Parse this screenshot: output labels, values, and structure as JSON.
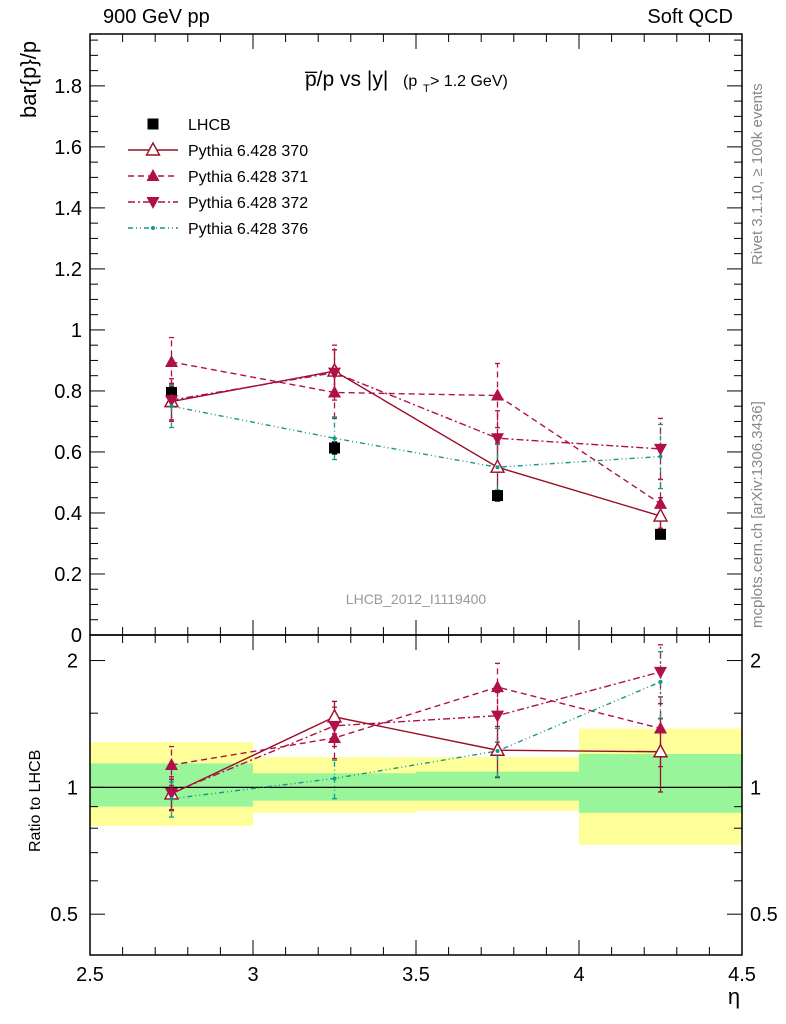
{
  "header": {
    "left": "900 GeV pp",
    "right": "Soft QCD"
  },
  "side_text": {
    "upper": "Rivet 3.1.10, ≥ 100k events",
    "lower": "mcplots.cern.ch [arXiv:1306.3436]"
  },
  "colors": {
    "lhcb": "#000000",
    "p370": "#9b0f26",
    "p371": "#b0104a",
    "p372": "#b0104a",
    "p376": "#119a8a",
    "band_inner": "#99f599",
    "band_outer": "#ffff99"
  },
  "chart_data": [
    {
      "type": "scatter",
      "title": "p̅/p vs |y|",
      "title_suffix": "(p",
      "title_sub": "T",
      "title_end": " > 1.2 GeV)",
      "ylabel": "bar{p}/p",
      "watermark": "LHCB_2012_I1119400",
      "xlim": [
        2.5,
        4.5
      ],
      "ylim": [
        0,
        1.97
      ],
      "yticks": [
        0,
        0.2,
        0.4,
        0.6,
        0.8,
        1,
        1.2,
        1.4,
        1.6,
        1.8
      ],
      "ytick_labels": [
        "0",
        "0.2",
        "0.4",
        "0.6",
        "0.8",
        "1",
        "1.2",
        "1.4",
        "1.6",
        "1.8"
      ],
      "legend_position": "top-left",
      "series": [
        {
          "key": "lhcb",
          "name": "LHCB",
          "marker": "square",
          "line": "none",
          "x": [
            2.75,
            3.25,
            3.75,
            4.25
          ],
          "y": [
            0.795,
            0.613,
            0.457,
            0.33
          ],
          "yerr": [
            0.025,
            0.02,
            0.018,
            0.015
          ]
        },
        {
          "key": "p370",
          "name": "Pythia 6.428 370",
          "marker": "triangle-open",
          "line": "solid",
          "x": [
            2.75,
            3.25,
            3.75,
            4.25
          ],
          "y": [
            0.765,
            0.865,
            0.55,
            0.39
          ],
          "yerr": [
            0.06,
            0.07,
            0.08,
            0.06
          ]
        },
        {
          "key": "p371",
          "name": "Pythia 6.428 371",
          "marker": "triangle-up",
          "line": "dashed",
          "x": [
            2.75,
            3.25,
            3.75,
            4.25
          ],
          "y": [
            0.895,
            0.795,
            0.785,
            0.43
          ],
          "yerr": [
            0.08,
            0.085,
            0.105,
            0.08
          ]
        },
        {
          "key": "p372",
          "name": "Pythia 6.428 372",
          "marker": "triangle-down",
          "line": "dashdot",
          "x": [
            2.75,
            3.25,
            3.75,
            4.25
          ],
          "y": [
            0.77,
            0.86,
            0.645,
            0.61
          ],
          "yerr": [
            0.07,
            0.09,
            0.09,
            0.1
          ]
        },
        {
          "key": "p376",
          "name": "Pythia 6.428 376",
          "marker": "dot",
          "line": "dashdotdot",
          "x": [
            2.75,
            3.25,
            3.75,
            4.25
          ],
          "y": [
            0.75,
            0.645,
            0.55,
            0.585
          ],
          "yerr": [
            0.07,
            0.07,
            0.075,
            0.105
          ]
        }
      ]
    },
    {
      "type": "scatter",
      "ylabel": "Ratio to LHCB",
      "xlabel": "η",
      "xlim": [
        2.5,
        4.5
      ],
      "ylim": [
        0.4,
        2.3
      ],
      "log_y": true,
      "xticks": [
        2.5,
        3,
        3.5,
        4,
        4.5
      ],
      "xtick_labels": [
        "2.5",
        "3",
        "3.5",
        "4",
        "4.5"
      ],
      "yticks": [
        0.5,
        1,
        2
      ],
      "ytick_labels": [
        "0.5",
        "1",
        "2"
      ],
      "bands": [
        {
          "x": [
            2.5,
            3.0
          ],
          "inner": [
            0.9,
            1.14
          ],
          "outer": [
            0.81,
            1.28
          ]
        },
        {
          "x": [
            3.0,
            3.5
          ],
          "inner": [
            0.93,
            1.08
          ],
          "outer": [
            0.87,
            1.18
          ]
        },
        {
          "x": [
            3.5,
            4.0
          ],
          "inner": [
            0.93,
            1.09
          ],
          "outer": [
            0.88,
            1.18
          ]
        },
        {
          "x": [
            4.0,
            4.5
          ],
          "inner": [
            0.87,
            1.2
          ],
          "outer": [
            0.73,
            1.38
          ]
        }
      ],
      "series": [
        {
          "key": "p370",
          "x": [
            2.75,
            3.25,
            3.75,
            4.25
          ],
          "y": [
            0.965,
            1.47,
            1.225,
            1.215
          ],
          "yerr": [
            0.08,
            0.13,
            0.17,
            0.24
          ]
        },
        {
          "key": "p371",
          "x": [
            2.75,
            3.25,
            3.75,
            4.25
          ],
          "y": [
            1.13,
            1.31,
            1.73,
            1.38
          ],
          "yerr": [
            0.12,
            0.14,
            0.24,
            0.26
          ]
        },
        {
          "key": "p372",
          "x": [
            2.75,
            3.25,
            3.75,
            4.25
          ],
          "y": [
            0.97,
            1.4,
            1.48,
            1.88
          ],
          "yerr": [
            0.09,
            0.15,
            0.2,
            0.3
          ]
        },
        {
          "key": "p376",
          "x": [
            2.75,
            3.25,
            3.75,
            4.25
          ],
          "y": [
            0.94,
            1.05,
            1.22,
            1.78
          ],
          "yerr": [
            0.09,
            0.11,
            0.16,
            0.32
          ]
        }
      ]
    }
  ]
}
